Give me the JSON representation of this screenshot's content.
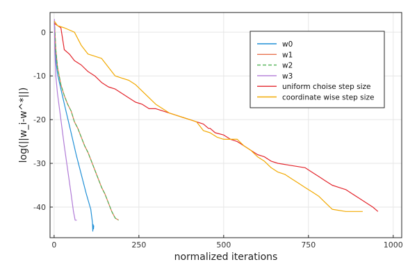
{
  "chart_data": {
    "type": "line",
    "title": "",
    "xlabel": "normalized iterations",
    "ylabel": "log(||w_i-w^*||)",
    "xlim": [
      -12,
      1025
    ],
    "ylim": [
      -47,
      4.5
    ],
    "xticks": [
      0,
      250,
      500,
      750,
      1000
    ],
    "yticks": [
      0,
      -10,
      -20,
      -30,
      -40
    ],
    "grid": true,
    "legend_position": "top-right",
    "series": [
      {
        "name": "w0",
        "color": "#1f8fd6",
        "dash": "solid",
        "points": [
          [
            1,
            2.0
          ],
          [
            3,
            -3.0
          ],
          [
            6,
            -7.0
          ],
          [
            10,
            -9.5
          ],
          [
            20,
            -13.0
          ],
          [
            35,
            -18.0
          ],
          [
            50,
            -23.0
          ],
          [
            65,
            -28.0
          ],
          [
            80,
            -32.5
          ],
          [
            95,
            -37.0
          ],
          [
            108,
            -40.5
          ],
          [
            113,
            -43.5
          ],
          [
            114,
            -45.5
          ],
          [
            115,
            -44.0
          ],
          [
            116,
            -45.0
          ],
          [
            117,
            -44.2
          ]
        ]
      },
      {
        "name": "w1",
        "color": "#e8734f",
        "dash": "solid",
        "points": [
          [
            1,
            2.5
          ],
          [
            5,
            -4.0
          ],
          [
            10,
            -8.0
          ],
          [
            20,
            -12.0
          ],
          [
            30,
            -14.5
          ],
          [
            40,
            -16.5
          ],
          [
            50,
            -18.0
          ],
          [
            60,
            -20.5
          ],
          [
            70,
            -22.0
          ],
          [
            80,
            -24.0
          ],
          [
            90,
            -26.0
          ],
          [
            100,
            -27.5
          ],
          [
            110,
            -29.5
          ],
          [
            120,
            -31.5
          ],
          [
            130,
            -33.5
          ],
          [
            140,
            -35.5
          ],
          [
            150,
            -37.0
          ],
          [
            160,
            -39.0
          ],
          [
            170,
            -41.0
          ],
          [
            180,
            -42.5
          ],
          [
            190,
            -43.0
          ]
        ]
      },
      {
        "name": "w2",
        "color": "#4caf50",
        "dash": "dashed",
        "points": [
          [
            1,
            2.5
          ],
          [
            5,
            -4.0
          ],
          [
            10,
            -8.0
          ],
          [
            20,
            -12.0
          ],
          [
            30,
            -14.5
          ],
          [
            40,
            -16.5
          ],
          [
            50,
            -18.0
          ],
          [
            60,
            -20.5
          ],
          [
            70,
            -22.0
          ],
          [
            80,
            -24.0
          ],
          [
            90,
            -26.0
          ],
          [
            100,
            -27.5
          ],
          [
            110,
            -29.5
          ],
          [
            120,
            -31.5
          ],
          [
            130,
            -33.5
          ],
          [
            140,
            -35.5
          ],
          [
            150,
            -37.0
          ],
          [
            160,
            -39.0
          ],
          [
            170,
            -41.0
          ],
          [
            180,
            -42.5
          ],
          [
            190,
            -43.0
          ]
        ]
      },
      {
        "name": "w3",
        "color": "#b07ad6",
        "dash": "solid",
        "points": [
          [
            1,
            3.0
          ],
          [
            2,
            -4.0
          ],
          [
            5,
            -10.0
          ],
          [
            10,
            -14.0
          ],
          [
            20,
            -20.0
          ],
          [
            30,
            -26.0
          ],
          [
            40,
            -31.5
          ],
          [
            50,
            -37.0
          ],
          [
            57,
            -41.0
          ],
          [
            62,
            -43.0
          ],
          [
            67,
            -43.0
          ]
        ]
      },
      {
        "name": "uniform choise step size",
        "color": "#e3242b",
        "dash": "solid",
        "points": [
          [
            1,
            2.0
          ],
          [
            20,
            1.0
          ],
          [
            30,
            -4.0
          ],
          [
            45,
            -5.0
          ],
          [
            60,
            -6.5
          ],
          [
            80,
            -7.5
          ],
          [
            100,
            -9.0
          ],
          [
            120,
            -10.0
          ],
          [
            140,
            -11.5
          ],
          [
            160,
            -12.5
          ],
          [
            180,
            -13.0
          ],
          [
            200,
            -14.0
          ],
          [
            220,
            -15.0
          ],
          [
            240,
            -16.0
          ],
          [
            260,
            -16.5
          ],
          [
            280,
            -17.5
          ],
          [
            300,
            -17.5
          ],
          [
            320,
            -18.0
          ],
          [
            340,
            -18.5
          ],
          [
            360,
            -19.0
          ],
          [
            380,
            -19.5
          ],
          [
            400,
            -20.0
          ],
          [
            420,
            -20.5
          ],
          [
            440,
            -21.0
          ],
          [
            455,
            -22.0
          ],
          [
            460,
            -22.0
          ],
          [
            475,
            -23.0
          ],
          [
            500,
            -23.5
          ],
          [
            520,
            -24.5
          ],
          [
            540,
            -25.0
          ],
          [
            560,
            -26.0
          ],
          [
            580,
            -27.0
          ],
          [
            600,
            -28.0
          ],
          [
            620,
            -28.5
          ],
          [
            640,
            -29.5
          ],
          [
            660,
            -30.0
          ],
          [
            700,
            -30.5
          ],
          [
            740,
            -31.0
          ],
          [
            760,
            -32.0
          ],
          [
            780,
            -33.0
          ],
          [
            800,
            -34.0
          ],
          [
            820,
            -35.0
          ],
          [
            840,
            -35.5
          ],
          [
            860,
            -36.0
          ],
          [
            880,
            -37.0
          ],
          [
            900,
            -38.0
          ],
          [
            920,
            -39.0
          ],
          [
            940,
            -40.0
          ],
          [
            955,
            -41.0
          ]
        ]
      },
      {
        "name": "coordinate wise step size",
        "color": "#f2a900",
        "dash": "solid",
        "points": [
          [
            1,
            2.5
          ],
          [
            10,
            1.5
          ],
          [
            30,
            1.0
          ],
          [
            60,
            0.0
          ],
          [
            80,
            -3.0
          ],
          [
            100,
            -5.0
          ],
          [
            140,
            -6.0
          ],
          [
            180,
            -10.0
          ],
          [
            200,
            -10.5
          ],
          [
            220,
            -11.0
          ],
          [
            240,
            -12.0
          ],
          [
            260,
            -13.5
          ],
          [
            280,
            -15.0
          ],
          [
            300,
            -16.5
          ],
          [
            320,
            -17.5
          ],
          [
            340,
            -18.5
          ],
          [
            360,
            -19.0
          ],
          [
            380,
            -19.5
          ],
          [
            400,
            -20.0
          ],
          [
            420,
            -20.5
          ],
          [
            440,
            -22.5
          ],
          [
            460,
            -23.0
          ],
          [
            480,
            -24.0
          ],
          [
            500,
            -24.5
          ],
          [
            540,
            -24.5
          ],
          [
            560,
            -26.0
          ],
          [
            580,
            -27.0
          ],
          [
            600,
            -28.5
          ],
          [
            620,
            -29.5
          ],
          [
            640,
            -31.0
          ],
          [
            660,
            -32.0
          ],
          [
            680,
            -32.5
          ],
          [
            700,
            -33.5
          ],
          [
            720,
            -34.5
          ],
          [
            740,
            -35.5
          ],
          [
            760,
            -36.5
          ],
          [
            780,
            -37.5
          ],
          [
            800,
            -39.0
          ],
          [
            820,
            -40.5
          ],
          [
            860,
            -41.0
          ],
          [
            880,
            -41.0
          ],
          [
            910,
            -41.0
          ]
        ]
      }
    ]
  }
}
